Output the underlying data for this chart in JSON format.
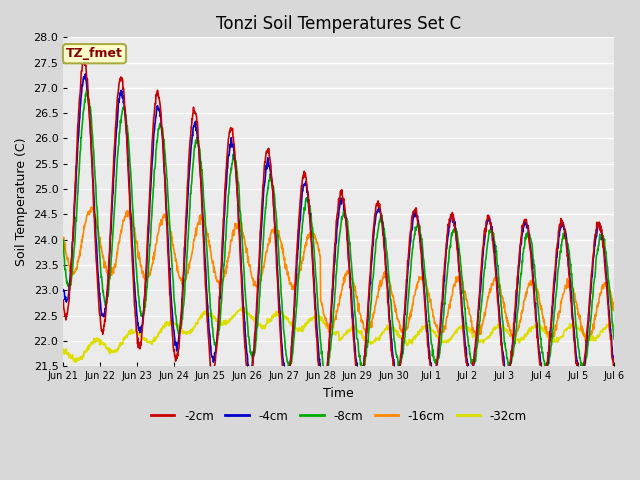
{
  "title": "Tonzi Soil Temperatures Set C",
  "xlabel": "Time",
  "ylabel": "Soil Temperature (C)",
  "ylim": [
    21.5,
    28.0
  ],
  "legend_label": "TZ_fmet",
  "series": {
    "-2cm": {
      "color": "#cc0000",
      "lw": 1.2
    },
    "-4cm": {
      "color": "#0000cc",
      "lw": 1.2
    },
    "-8cm": {
      "color": "#00aa00",
      "lw": 1.2
    },
    "-16cm": {
      "color": "#ff8800",
      "lw": 1.2
    },
    "-32cm": {
      "color": "#dddd00",
      "lw": 1.2
    }
  },
  "bg_color": "#d8d8d8",
  "plot_bg": "#ebebeb",
  "legend_box_color": "#ffffcc",
  "legend_box_edge": "#aaaa44",
  "legend_text_color": "#880000",
  "tick_labels": [
    "Jun 21",
    "Jun 22",
    "Jun 23",
    "Jun 24",
    "Jun 25",
    "Jun 26",
    "Jun 27",
    "Jun 28",
    "Jun 29",
    "Jun 30",
    "Jul 1",
    "Jul 2",
    "Jul 3",
    "Jul 4",
    "Jul 5",
    "Jul 6"
  ]
}
